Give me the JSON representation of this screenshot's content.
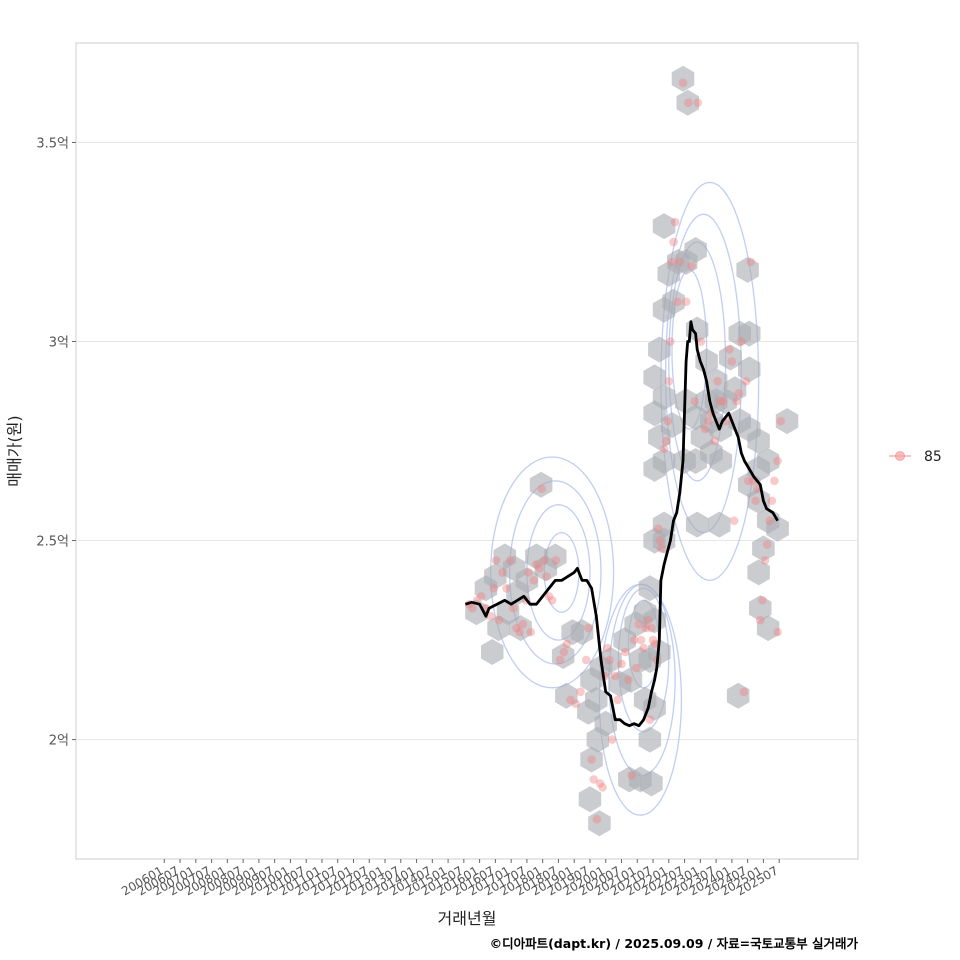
{
  "chart_data": {
    "type": "scatter",
    "title": "",
    "xlabel": "거래년월",
    "ylabel": "매매가(원)",
    "caption": "©디아파트(dapt.kr) / 2025.09.09 / 자료=국토교통부 실거래가",
    "ylim": [
      1.7,
      3.75
    ],
    "xlim": [
      2003.2,
      2028.0
    ],
    "y_ticks": [
      {
        "value": 2.0,
        "label": "2억"
      },
      {
        "value": 2.5,
        "label": "2.5억"
      },
      {
        "value": 3.0,
        "label": "3억"
      },
      {
        "value": 3.5,
        "label": "3.5억"
      }
    ],
    "x_ticks": [
      "200601",
      "200607",
      "200701",
      "200707",
      "200801",
      "200807",
      "200901",
      "200907",
      "201001",
      "201007",
      "201101",
      "201107",
      "201201",
      "201207",
      "201301",
      "201307",
      "201401",
      "201407",
      "201501",
      "201507",
      "201601",
      "201607",
      "201701",
      "201707",
      "201801",
      "201807",
      "201901",
      "201907",
      "202001",
      "202007",
      "202101",
      "202107",
      "202201",
      "202207",
      "202301",
      "202307",
      "202401",
      "202407",
      "202501",
      "202507"
    ],
    "legend": [
      {
        "label": "85",
        "color": "#f4a3a3",
        "position": "right"
      }
    ],
    "colors": {
      "point": "#f08080",
      "hex": "#a9adb3",
      "contour": "#b6c6f0",
      "line": "#000000",
      "grid": "#e6e6e6",
      "panel_border": "#cccccc"
    },
    "points": [
      [
        2015.67,
        2.34
      ],
      [
        2015.77,
        2.33
      ],
      [
        2015.92,
        2.35
      ],
      [
        2016.05,
        2.36
      ],
      [
        2016.2,
        2.33
      ],
      [
        2016.35,
        2.31
      ],
      [
        2016.45,
        2.38
      ],
      [
        2016.52,
        2.45
      ],
      [
        2016.62,
        2.3
      ],
      [
        2016.72,
        2.42
      ],
      [
        2016.85,
        2.38
      ],
      [
        2016.97,
        2.45
      ],
      [
        2017.07,
        2.33
      ],
      [
        2017.17,
        2.28
      ],
      [
        2017.27,
        2.27
      ],
      [
        2017.37,
        2.29
      ],
      [
        2017.47,
        2.35
      ],
      [
        2017.55,
        2.42
      ],
      [
        2017.62,
        2.27
      ],
      [
        2017.72,
        2.4
      ],
      [
        2017.8,
        2.44
      ],
      [
        2017.9,
        2.43
      ],
      [
        2017.97,
        2.63
      ],
      [
        2018.05,
        2.45
      ],
      [
        2018.12,
        2.41
      ],
      [
        2018.2,
        2.36
      ],
      [
        2018.3,
        2.35
      ],
      [
        2018.42,
        2.45
      ],
      [
        2018.55,
        2.2
      ],
      [
        2018.67,
        2.22
      ],
      [
        2018.77,
        2.24
      ],
      [
        2018.88,
        2.1
      ],
      [
        2019.05,
        2.09
      ],
      [
        2019.2,
        2.12
      ],
      [
        2019.38,
        2.2
      ],
      [
        2019.45,
        2.28
      ],
      [
        2019.55,
        1.95
      ],
      [
        2019.62,
        1.9
      ],
      [
        2019.72,
        1.8
      ],
      [
        2019.82,
        1.89
      ],
      [
        2019.9,
        1.88
      ],
      [
        2019.98,
        2.16
      ],
      [
        2020.05,
        2.23
      ],
      [
        2020.12,
        2.2
      ],
      [
        2020.2,
        2.0
      ],
      [
        2020.3,
        2.16
      ],
      [
        2020.38,
        2.1
      ],
      [
        2020.5,
        2.19
      ],
      [
        2020.62,
        2.22
      ],
      [
        2020.72,
        2.15
      ],
      [
        2020.82,
        1.91
      ],
      [
        2020.9,
        2.25
      ],
      [
        2020.97,
        2.18
      ],
      [
        2021.05,
        2.29
      ],
      [
        2021.12,
        2.25
      ],
      [
        2021.2,
        2.23
      ],
      [
        2021.27,
        2.28
      ],
      [
        2021.35,
        2.3
      ],
      [
        2021.4,
        2.05
      ],
      [
        2021.45,
        2.28
      ],
      [
        2021.5,
        2.25
      ],
      [
        2021.55,
        2.24
      ],
      [
        2021.62,
        2.2
      ],
      [
        2021.67,
        2.53
      ],
      [
        2021.72,
        2.5
      ],
      [
        2021.77,
        2.48
      ],
      [
        2021.85,
        2.73
      ],
      [
        2021.92,
        2.75
      ],
      [
        2021.97,
        2.8
      ],
      [
        2022.0,
        2.9
      ],
      [
        2022.05,
        3.0
      ],
      [
        2022.1,
        3.2
      ],
      [
        2022.15,
        3.25
      ],
      [
        2022.2,
        3.3
      ],
      [
        2022.27,
        3.1
      ],
      [
        2022.35,
        3.2
      ],
      [
        2022.45,
        3.65
      ],
      [
        2022.55,
        3.1
      ],
      [
        2022.62,
        3.6
      ],
      [
        2022.72,
        3.19
      ],
      [
        2022.82,
        2.85
      ],
      [
        2022.92,
        3.6
      ],
      [
        2023.02,
        3.0
      ],
      [
        2023.15,
        2.78
      ],
      [
        2023.25,
        2.8
      ],
      [
        2023.35,
        2.82
      ],
      [
        2023.45,
        2.75
      ],
      [
        2023.55,
        2.9
      ],
      [
        2023.62,
        2.85
      ],
      [
        2023.72,
        2.85
      ],
      [
        2023.82,
        2.8
      ],
      [
        2023.92,
        2.98
      ],
      [
        2024.0,
        2.95
      ],
      [
        2024.07,
        2.55
      ],
      [
        2024.15,
        2.85
      ],
      [
        2024.22,
        2.87
      ],
      [
        2024.3,
        3.0
      ],
      [
        2024.38,
        2.12
      ],
      [
        2024.45,
        2.9
      ],
      [
        2024.52,
        2.65
      ],
      [
        2024.6,
        3.2
      ],
      [
        2024.67,
        2.65
      ],
      [
        2024.75,
        2.6
      ],
      [
        2024.82,
        2.63
      ],
      [
        2024.9,
        2.3
      ],
      [
        2024.97,
        2.35
      ],
      [
        2025.05,
        2.45
      ],
      [
        2025.12,
        2.49
      ],
      [
        2025.2,
        2.55
      ],
      [
        2025.27,
        2.6
      ],
      [
        2025.35,
        2.65
      ],
      [
        2025.45,
        2.7
      ],
      [
        2025.55,
        2.8
      ],
      [
        2025.45,
        2.27
      ]
    ],
    "hexbins": [
      [
        2015.9,
        2.32
      ],
      [
        2016.2,
        2.38
      ],
      [
        2016.5,
        2.41
      ],
      [
        2016.8,
        2.46
      ],
      [
        2017.1,
        2.43
      ],
      [
        2016.6,
        2.28
      ],
      [
        2016.9,
        2.32
      ],
      [
        2017.2,
        2.37
      ],
      [
        2017.5,
        2.4
      ],
      [
        2017.8,
        2.46
      ],
      [
        2018.1,
        2.43
      ],
      [
        2018.4,
        2.46
      ],
      [
        2017.3,
        2.28
      ],
      [
        2016.4,
        2.22
      ],
      [
        2017.95,
        2.64
      ],
      [
        2018.65,
        2.21
      ],
      [
        2018.95,
        2.27
      ],
      [
        2019.25,
        2.27
      ],
      [
        2018.75,
        2.11
      ],
      [
        2019.55,
        2.15
      ],
      [
        2019.85,
        2.18
      ],
      [
        2020.15,
        2.2
      ],
      [
        2020.45,
        2.14
      ],
      [
        2019.7,
        2.1
      ],
      [
        2020.0,
        2.04
      ],
      [
        2019.45,
        2.07
      ],
      [
        2019.55,
        1.95
      ],
      [
        2019.75,
        2.0
      ],
      [
        2019.5,
        1.85
      ],
      [
        2019.8,
        1.79
      ],
      [
        2020.8,
        2.15
      ],
      [
        2021.1,
        2.2
      ],
      [
        2021.4,
        2.2
      ],
      [
        2021.7,
        2.22
      ],
      [
        2020.95,
        2.29
      ],
      [
        2021.25,
        2.32
      ],
      [
        2021.55,
        2.3
      ],
      [
        2021.4,
        2.38
      ],
      [
        2020.6,
        2.25
      ],
      [
        2021.25,
        2.1
      ],
      [
        2021.55,
        2.08
      ],
      [
        2021.4,
        2.0
      ],
      [
        2020.75,
        1.9
      ],
      [
        2021.1,
        1.9
      ],
      [
        2021.45,
        1.89
      ],
      [
        2021.55,
        2.5
      ],
      [
        2021.85,
        2.54
      ],
      [
        2021.55,
        2.68
      ],
      [
        2021.85,
        2.7
      ],
      [
        2021.7,
        2.76
      ],
      [
        2022.1,
        2.79
      ],
      [
        2021.55,
        2.82
      ],
      [
        2021.85,
        2.86
      ],
      [
        2021.55,
        2.91
      ],
      [
        2021.7,
        2.98
      ],
      [
        2022.15,
        3.1
      ],
      [
        2021.85,
        3.08
      ],
      [
        2022.0,
        3.17
      ],
      [
        2022.3,
        3.2
      ],
      [
        2021.85,
        3.29
      ],
      [
        2022.55,
        3.2
      ],
      [
        2022.85,
        3.23
      ],
      [
        2022.45,
        3.66
      ],
      [
        2022.6,
        3.6
      ],
      [
        2022.55,
        2.85
      ],
      [
        2022.85,
        2.81
      ],
      [
        2023.2,
        2.85
      ],
      [
        2023.5,
        2.85
      ],
      [
        2023.35,
        2.8
      ],
      [
        2023.65,
        2.78
      ],
      [
        2023.05,
        2.76
      ],
      [
        2023.35,
        2.72
      ],
      [
        2023.65,
        2.7
      ],
      [
        2022.85,
        2.7
      ],
      [
        2022.5,
        2.7
      ],
      [
        2022.9,
        3.03
      ],
      [
        2023.2,
        2.95
      ],
      [
        2023.5,
        2.9
      ],
      [
        2023.8,
        2.85
      ],
      [
        2024.1,
        2.88
      ],
      [
        2023.95,
        2.96
      ],
      [
        2024.25,
        3.02
      ],
      [
        2024.55,
        3.02
      ],
      [
        2024.55,
        2.93
      ],
      [
        2024.25,
        2.8
      ],
      [
        2024.55,
        2.78
      ],
      [
        2024.85,
        2.75
      ],
      [
        2025.15,
        2.7
      ],
      [
        2024.85,
        2.68
      ],
      [
        2024.55,
        2.64
      ],
      [
        2024.85,
        2.6
      ],
      [
        2025.15,
        2.55
      ],
      [
        2025.45,
        2.53
      ],
      [
        2025.0,
        2.48
      ],
      [
        2024.85,
        2.42
      ],
      [
        2024.9,
        2.33
      ],
      [
        2025.15,
        2.28
      ],
      [
        2024.5,
        3.18
      ],
      [
        2025.75,
        2.8
      ],
      [
        2022.9,
        2.54
      ],
      [
        2023.6,
        2.54
      ],
      [
        2024.2,
        2.11
      ],
      [
        2021.85,
        2.5
      ]
    ],
    "line": [
      [
        2015.55,
        2.34
      ],
      [
        2015.75,
        2.345
      ],
      [
        2016.0,
        2.34
      ],
      [
        2016.2,
        2.31
      ],
      [
        2016.3,
        2.33
      ],
      [
        2016.55,
        2.34
      ],
      [
        2016.8,
        2.35
      ],
      [
        2017.0,
        2.34
      ],
      [
        2017.2,
        2.35
      ],
      [
        2017.4,
        2.36
      ],
      [
        2017.6,
        2.34
      ],
      [
        2017.8,
        2.34
      ],
      [
        2018.0,
        2.36
      ],
      [
        2018.2,
        2.38
      ],
      [
        2018.4,
        2.4
      ],
      [
        2018.6,
        2.4
      ],
      [
        2018.8,
        2.41
      ],
      [
        2019.0,
        2.42
      ],
      [
        2019.1,
        2.43
      ],
      [
        2019.25,
        2.4
      ],
      [
        2019.4,
        2.4
      ],
      [
        2019.55,
        2.38
      ],
      [
        2019.7,
        2.31
      ],
      [
        2019.85,
        2.2
      ],
      [
        2020.0,
        2.12
      ],
      [
        2020.15,
        2.11
      ],
      [
        2020.3,
        2.05
      ],
      [
        2020.45,
        2.05
      ],
      [
        2020.6,
        2.04
      ],
      [
        2020.75,
        2.035
      ],
      [
        2020.9,
        2.04
      ],
      [
        2021.05,
        2.035
      ],
      [
        2021.2,
        2.05
      ],
      [
        2021.35,
        2.08
      ],
      [
        2021.45,
        2.12
      ],
      [
        2021.55,
        2.15
      ],
      [
        2021.62,
        2.18
      ],
      [
        2021.7,
        2.25
      ],
      [
        2021.75,
        2.4
      ],
      [
        2021.85,
        2.44
      ],
      [
        2021.95,
        2.47
      ],
      [
        2022.05,
        2.5
      ],
      [
        2022.15,
        2.55
      ],
      [
        2022.25,
        2.57
      ],
      [
        2022.35,
        2.62
      ],
      [
        2022.45,
        2.7
      ],
      [
        2022.55,
        2.95
      ],
      [
        2022.6,
        3.0
      ],
      [
        2022.65,
        3.0
      ],
      [
        2022.7,
        3.05
      ],
      [
        2022.75,
        3.03
      ],
      [
        2022.85,
        3.02
      ],
      [
        2022.9,
        2.98
      ],
      [
        2023.0,
        2.95
      ],
      [
        2023.1,
        2.93
      ],
      [
        2023.2,
        2.9
      ],
      [
        2023.3,
        2.85
      ],
      [
        2023.4,
        2.82
      ],
      [
        2023.5,
        2.8
      ],
      [
        2023.6,
        2.78
      ],
      [
        2023.7,
        2.8
      ],
      [
        2023.8,
        2.81
      ],
      [
        2023.9,
        2.82
      ],
      [
        2024.0,
        2.8
      ],
      [
        2024.1,
        2.78
      ],
      [
        2024.2,
        2.76
      ],
      [
        2024.3,
        2.72
      ],
      [
        2024.4,
        2.7
      ],
      [
        2024.55,
        2.68
      ],
      [
        2024.7,
        2.66
      ],
      [
        2024.9,
        2.64
      ],
      [
        2025.0,
        2.6
      ],
      [
        2025.1,
        2.58
      ],
      [
        2025.3,
        2.57
      ],
      [
        2025.45,
        2.55
      ]
    ],
    "contours": [
      [
        [
          2018.6,
          2.42,
          0.55,
          0.1,
          0
        ],
        [
          2021.2,
          2.24,
          0.48,
          0.11,
          0
        ],
        [
          2022.65,
          2.98,
          0.55,
          0.2,
          0
        ]
      ],
      [
        [
          2018.5,
          2.42,
          1.0,
          0.17,
          0
        ],
        [
          2021.2,
          2.2,
          0.8,
          0.18,
          0
        ],
        [
          2022.9,
          2.95,
          0.9,
          0.3,
          0
        ]
      ],
      [
        [
          2018.4,
          2.42,
          1.45,
          0.23,
          0
        ],
        [
          2021.15,
          2.15,
          1.05,
          0.24,
          0
        ],
        [
          2023.1,
          2.92,
          1.2,
          0.4,
          0
        ]
      ],
      [
        [
          2018.3,
          2.42,
          1.95,
          0.29,
          0
        ],
        [
          2021.1,
          2.1,
          1.3,
          0.29,
          0
        ],
        [
          2023.3,
          2.9,
          1.55,
          0.5,
          0
        ]
      ]
    ]
  }
}
